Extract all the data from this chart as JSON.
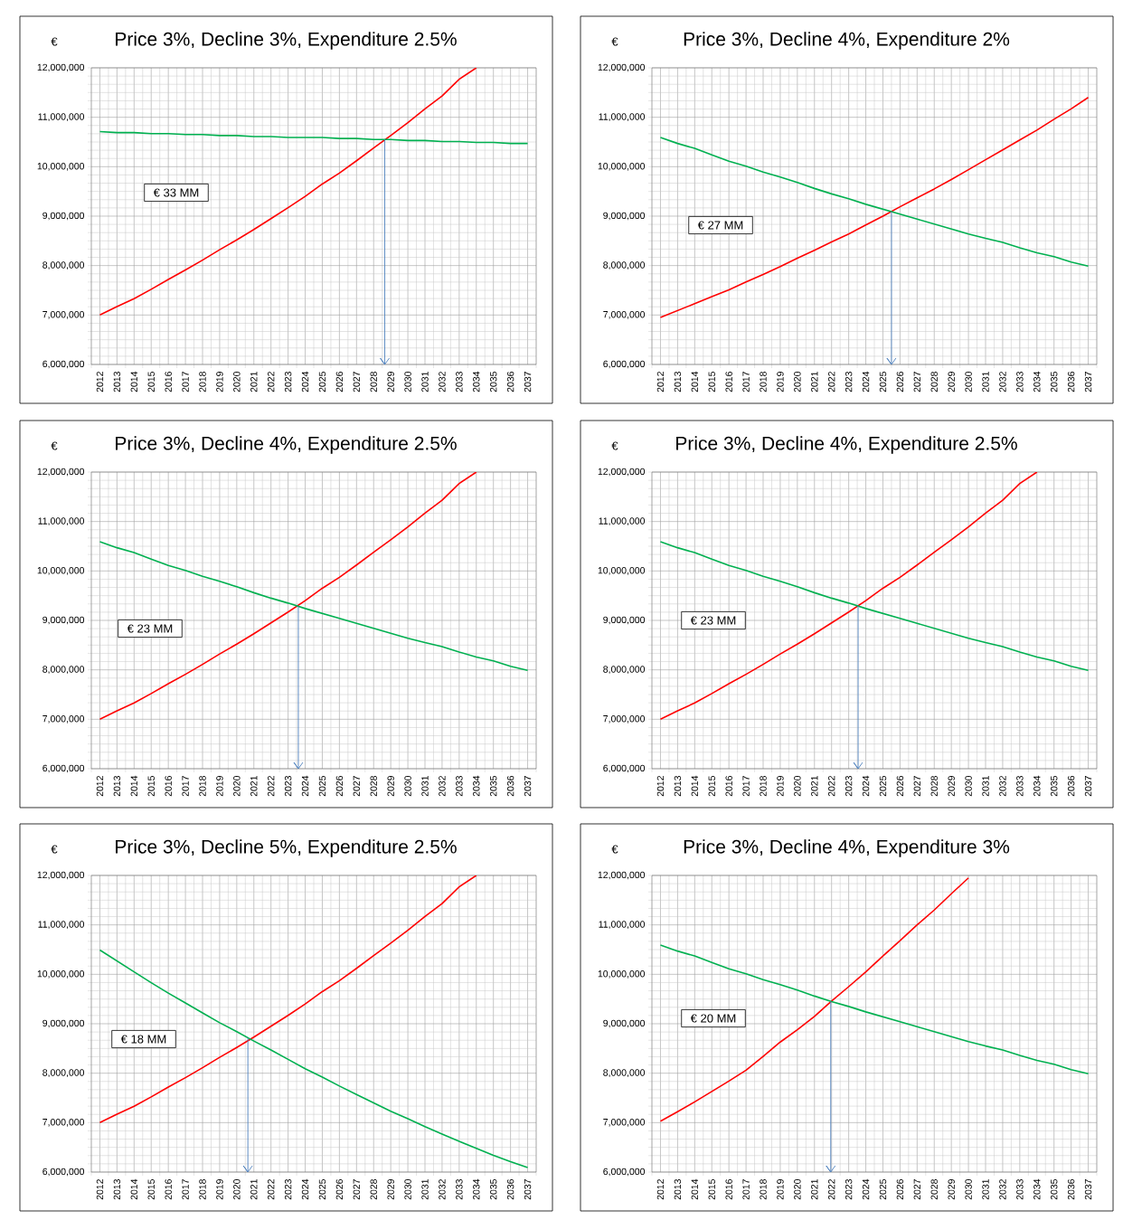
{
  "chart_data": [
    {
      "type": "line",
      "title": "Price 3%, Decline 3%, Expenditure 2.5%",
      "ylabel": "€",
      "x": [
        2012,
        2013,
        2014,
        2015,
        2016,
        2017,
        2018,
        2019,
        2020,
        2021,
        2022,
        2023,
        2024,
        2025,
        2026,
        2027,
        2028,
        2029,
        2030,
        2031,
        2032,
        2033,
        2034,
        2035,
        2036,
        2037
      ],
      "xlim": [
        2011.5,
        2037.5
      ],
      "xticks": [
        2012,
        2013,
        2014,
        2015,
        2016,
        2017,
        2018,
        2019,
        2020,
        2021,
        2022,
        2023,
        2024,
        2025,
        2026,
        2027,
        2028,
        2029,
        2030,
        2031,
        2032,
        2033,
        2034,
        2035,
        2036,
        2037
      ],
      "ylim": [
        6000000,
        12000000
      ],
      "yticks": [
        {
          "value": 6000000,
          "label": "6,000,000"
        },
        {
          "value": 7000000,
          "label": "7,000,000"
        },
        {
          "value": 8000000,
          "label": "8,000,000"
        },
        {
          "value": 9000000,
          "label": "9,000,000"
        },
        {
          "value": 10000000,
          "label": "10,000,000"
        },
        {
          "value": 11000000,
          "label": "11,000,000"
        },
        {
          "value": 12000000,
          "label": "12,000,000"
        }
      ],
      "grid": true,
      "annotations": [
        "€ 33 MM"
      ],
      "ref_lines": [
        {
          "axis": "x",
          "value": 2028.65,
          "color": "#4f81bd"
        }
      ],
      "series": [
        {
          "color": "#ff0000",
          "values": [
            7000000,
            7170000,
            7330000,
            7520000,
            7720000,
            7910000,
            8110000,
            8320000,
            8520000,
            8730000,
            8950000,
            9170000,
            9400000,
            9650000,
            9870000,
            10120000,
            10380000,
            10630000,
            10890000,
            11170000,
            11430000,
            11770000,
            12000000,
            null,
            null,
            null
          ]
        },
        {
          "color": "#00b050",
          "values": [
            10710000,
            10690000,
            10690000,
            10670000,
            10670000,
            10650000,
            10650000,
            10630000,
            10630000,
            10610000,
            10610000,
            10590000,
            10590000,
            10590000,
            10570000,
            10570000,
            10550000,
            10550000,
            10530000,
            10530000,
            10510000,
            10510000,
            10490000,
            10490000,
            10470000,
            10470000
          ]
        }
      ]
    },
    {
      "type": "line",
      "title": "Price 3%, Decline 4%, Expenditure 2%",
      "ylabel": "€",
      "x": [
        2012,
        2013,
        2014,
        2015,
        2016,
        2017,
        2018,
        2019,
        2020,
        2021,
        2022,
        2023,
        2024,
        2025,
        2026,
        2027,
        2028,
        2029,
        2030,
        2031,
        2032,
        2033,
        2034,
        2035,
        2036,
        2037
      ],
      "xlim": [
        2011.5,
        2037.5
      ],
      "xticks": [
        2012,
        2013,
        2014,
        2015,
        2016,
        2017,
        2018,
        2019,
        2020,
        2021,
        2022,
        2023,
        2024,
        2025,
        2026,
        2027,
        2028,
        2029,
        2030,
        2031,
        2032,
        2033,
        2034,
        2035,
        2036,
        2037
      ],
      "ylim": [
        6000000,
        12000000
      ],
      "yticks": [
        {
          "value": 6000000,
          "label": "6,000,000"
        },
        {
          "value": 7000000,
          "label": "7,000,000"
        },
        {
          "value": 8000000,
          "label": "8,000,000"
        },
        {
          "value": 9000000,
          "label": "9,000,000"
        },
        {
          "value": 10000000,
          "label": "10,000,000"
        },
        {
          "value": 11000000,
          "label": "11,000,000"
        },
        {
          "value": 12000000,
          "label": "12,000,000"
        }
      ],
      "grid": true,
      "annotations": [
        "€ 27 MM"
      ],
      "ref_lines": [
        {
          "axis": "x",
          "value": 2025.5,
          "color": "#4f81bd"
        }
      ],
      "series": [
        {
          "color": "#ff0000",
          "values": [
            6950000,
            7090000,
            7230000,
            7370000,
            7510000,
            7670000,
            7820000,
            7980000,
            8150000,
            8310000,
            8480000,
            8640000,
            8820000,
            9000000,
            9190000,
            9370000,
            9550000,
            9740000,
            9940000,
            10140000,
            10340000,
            10540000,
            10740000,
            10960000,
            11170000,
            11400000
          ]
        },
        {
          "color": "#00b050",
          "values": [
            10590000,
            10470000,
            10370000,
            10240000,
            10110000,
            10010000,
            9890000,
            9790000,
            9680000,
            9560000,
            9450000,
            9350000,
            9240000,
            9140000,
            9040000,
            8940000,
            8840000,
            8740000,
            8640000,
            8550000,
            8470000,
            8360000,
            8260000,
            8180000,
            8070000,
            7990000
          ]
        }
      ]
    },
    {
      "type": "line",
      "title": "Price 3%, Decline 4%, Expenditure 2.5%",
      "ylabel": "€",
      "x": [
        2012,
        2013,
        2014,
        2015,
        2016,
        2017,
        2018,
        2019,
        2020,
        2021,
        2022,
        2023,
        2024,
        2025,
        2026,
        2027,
        2028,
        2029,
        2030,
        2031,
        2032,
        2033,
        2034,
        2035,
        2036,
        2037
      ],
      "xlim": [
        2011.5,
        2037.5
      ],
      "xticks": [
        2012,
        2013,
        2014,
        2015,
        2016,
        2017,
        2018,
        2019,
        2020,
        2021,
        2022,
        2023,
        2024,
        2025,
        2026,
        2027,
        2028,
        2029,
        2030,
        2031,
        2032,
        2033,
        2034,
        2035,
        2036,
        2037
      ],
      "ylim": [
        6000000,
        12000000
      ],
      "yticks": [
        {
          "value": 6000000,
          "label": "6,000,000"
        },
        {
          "value": 7000000,
          "label": "7,000,000"
        },
        {
          "value": 8000000,
          "label": "8,000,000"
        },
        {
          "value": 9000000,
          "label": "9,000,000"
        },
        {
          "value": 10000000,
          "label": "10,000,000"
        },
        {
          "value": 11000000,
          "label": "11,000,000"
        },
        {
          "value": 12000000,
          "label": "12,000,000"
        }
      ],
      "grid": true,
      "annotations": [
        "€ 23 MM"
      ],
      "ref_lines": [
        {
          "axis": "x",
          "value": 2023.6,
          "color": "#4f81bd"
        }
      ],
      "series": [
        {
          "color": "#ff0000",
          "values": [
            7000000,
            7170000,
            7330000,
            7520000,
            7720000,
            7910000,
            8110000,
            8320000,
            8520000,
            8730000,
            8950000,
            9170000,
            9400000,
            9650000,
            9870000,
            10120000,
            10380000,
            10630000,
            10890000,
            11170000,
            11430000,
            11770000,
            12000000,
            null,
            null,
            null
          ]
        },
        {
          "color": "#00b050",
          "values": [
            10590000,
            10470000,
            10370000,
            10240000,
            10110000,
            10010000,
            9890000,
            9790000,
            9680000,
            9560000,
            9450000,
            9350000,
            9240000,
            9140000,
            9040000,
            8940000,
            8840000,
            8740000,
            8640000,
            8550000,
            8470000,
            8360000,
            8260000,
            8180000,
            8070000,
            7990000
          ]
        }
      ]
    },
    {
      "type": "line",
      "title": "Price 3%, Decline 4%, Expenditure 2.5%",
      "ylabel": "€",
      "x": [
        2012,
        2013,
        2014,
        2015,
        2016,
        2017,
        2018,
        2019,
        2020,
        2021,
        2022,
        2023,
        2024,
        2025,
        2026,
        2027,
        2028,
        2029,
        2030,
        2031,
        2032,
        2033,
        2034,
        2035,
        2036,
        2037
      ],
      "xlim": [
        2011.5,
        2037.5
      ],
      "xticks": [
        2012,
        2013,
        2014,
        2015,
        2016,
        2017,
        2018,
        2019,
        2020,
        2021,
        2022,
        2023,
        2024,
        2025,
        2026,
        2027,
        2028,
        2029,
        2030,
        2031,
        2032,
        2033,
        2034,
        2035,
        2036,
        2037
      ],
      "ylim": [
        6000000,
        12000000
      ],
      "yticks": [
        {
          "value": 6000000,
          "label": "6,000,000"
        },
        {
          "value": 7000000,
          "label": "7,000,000"
        },
        {
          "value": 8000000,
          "label": "8,000,000"
        },
        {
          "value": 9000000,
          "label": "9,000,000"
        },
        {
          "value": 10000000,
          "label": "10,000,000"
        },
        {
          "value": 11000000,
          "label": "11,000,000"
        },
        {
          "value": 12000000,
          "label": "12,000,000"
        }
      ],
      "grid": true,
      "annotations": [
        "€ 23 MM"
      ],
      "ref_lines": [
        {
          "axis": "x",
          "value": 2023.55,
          "color": "#4f81bd"
        }
      ],
      "series": [
        {
          "color": "#ff0000",
          "values": [
            7000000,
            7170000,
            7330000,
            7520000,
            7720000,
            7910000,
            8110000,
            8320000,
            8520000,
            8730000,
            8950000,
            9170000,
            9400000,
            9650000,
            9870000,
            10120000,
            10380000,
            10630000,
            10890000,
            11170000,
            11430000,
            11770000,
            12000000,
            null,
            null,
            null
          ]
        },
        {
          "color": "#00b050",
          "values": [
            10590000,
            10470000,
            10370000,
            10240000,
            10110000,
            10010000,
            9890000,
            9790000,
            9680000,
            9560000,
            9450000,
            9350000,
            9240000,
            9140000,
            9040000,
            8940000,
            8840000,
            8740000,
            8640000,
            8550000,
            8470000,
            8360000,
            8260000,
            8180000,
            8070000,
            7990000
          ]
        }
      ]
    },
    {
      "type": "line",
      "title": "Price 3%, Decline 5%, Expenditure 2.5%",
      "ylabel": "€",
      "x": [
        2012,
        2013,
        2014,
        2015,
        2016,
        2017,
        2018,
        2019,
        2020,
        2021,
        2022,
        2023,
        2024,
        2025,
        2026,
        2027,
        2028,
        2029,
        2030,
        2031,
        2032,
        2033,
        2034,
        2035,
        2036,
        2037
      ],
      "xlim": [
        2011.5,
        2037.5
      ],
      "xticks": [
        2012,
        2013,
        2014,
        2015,
        2016,
        2017,
        2018,
        2019,
        2020,
        2021,
        2022,
        2023,
        2024,
        2025,
        2026,
        2027,
        2028,
        2029,
        2030,
        2031,
        2032,
        2033,
        2034,
        2035,
        2036,
        2037
      ],
      "ylim": [
        6000000,
        12000000
      ],
      "yticks": [
        {
          "value": 6000000,
          "label": "6,000,000"
        },
        {
          "value": 7000000,
          "label": "7,000,000"
        },
        {
          "value": 8000000,
          "label": "8,000,000"
        },
        {
          "value": 9000000,
          "label": "9,000,000"
        },
        {
          "value": 10000000,
          "label": "10,000,000"
        },
        {
          "value": 11000000,
          "label": "11,000,000"
        },
        {
          "value": 12000000,
          "label": "12,000,000"
        }
      ],
      "grid": true,
      "annotations": [
        "€ 18 MM"
      ],
      "ref_lines": [
        {
          "axis": "x",
          "value": 2020.65,
          "color": "#4f81bd"
        }
      ],
      "series": [
        {
          "color": "#ff0000",
          "values": [
            7000000,
            7170000,
            7330000,
            7520000,
            7720000,
            7910000,
            8110000,
            8320000,
            8520000,
            8730000,
            8950000,
            9170000,
            9400000,
            9650000,
            9870000,
            10120000,
            10380000,
            10630000,
            10890000,
            11170000,
            11430000,
            11770000,
            12000000,
            null,
            null,
            null
          ]
        },
        {
          "color": "#00b050",
          "values": [
            10490000,
            10270000,
            10050000,
            9830000,
            9620000,
            9420000,
            9220000,
            9020000,
            8840000,
            8650000,
            8470000,
            8280000,
            8090000,
            7920000,
            7740000,
            7570000,
            7400000,
            7230000,
            7080000,
            6920000,
            6770000,
            6620000,
            6480000,
            6340000,
            6210000,
            6090000
          ]
        }
      ]
    },
    {
      "type": "line",
      "title": "Price 3%, Decline 4%, Expenditure 3%",
      "ylabel": "€",
      "x": [
        2012,
        2013,
        2014,
        2015,
        2016,
        2017,
        2018,
        2019,
        2020,
        2021,
        2022,
        2023,
        2024,
        2025,
        2026,
        2027,
        2028,
        2029,
        2030,
        2031,
        2032,
        2033,
        2034,
        2035,
        2036,
        2037
      ],
      "xlim": [
        2011.5,
        2037.5
      ],
      "xticks": [
        2012,
        2013,
        2014,
        2015,
        2016,
        2017,
        2018,
        2019,
        2020,
        2021,
        2022,
        2023,
        2024,
        2025,
        2026,
        2027,
        2028,
        2029,
        2030,
        2031,
        2032,
        2033,
        2034,
        2035,
        2036,
        2037
      ],
      "ylim": [
        6000000,
        12000000
      ],
      "yticks": [
        {
          "value": 6000000,
          "label": "6,000,000"
        },
        {
          "value": 7000000,
          "label": "7,000,000"
        },
        {
          "value": 8000000,
          "label": "8,000,000"
        },
        {
          "value": 9000000,
          "label": "9,000,000"
        },
        {
          "value": 10000000,
          "label": "10,000,000"
        },
        {
          "value": 11000000,
          "label": "11,000,000"
        },
        {
          "value": 12000000,
          "label": "12,000,000"
        }
      ],
      "grid": true,
      "annotations": [
        "€ 20 MM"
      ],
      "ref_lines": [
        {
          "axis": "x",
          "value": 2021.95,
          "color": "#4f81bd"
        }
      ],
      "series": [
        {
          "color": "#ff0000",
          "values": [
            7030000,
            7220000,
            7420000,
            7630000,
            7840000,
            8060000,
            8340000,
            8630000,
            8880000,
            9150000,
            9460000,
            9750000,
            10050000,
            10370000,
            10680000,
            11000000,
            11300000,
            11630000,
            11950000,
            null,
            null,
            null,
            null,
            null,
            null,
            null
          ]
        },
        {
          "color": "#00b050",
          "values": [
            10590000,
            10470000,
            10370000,
            10240000,
            10110000,
            10010000,
            9890000,
            9790000,
            9680000,
            9560000,
            9450000,
            9350000,
            9240000,
            9140000,
            9040000,
            8940000,
            8840000,
            8740000,
            8640000,
            8550000,
            8470000,
            8360000,
            8260000,
            8180000,
            8070000,
            7990000
          ]
        }
      ]
    }
  ]
}
